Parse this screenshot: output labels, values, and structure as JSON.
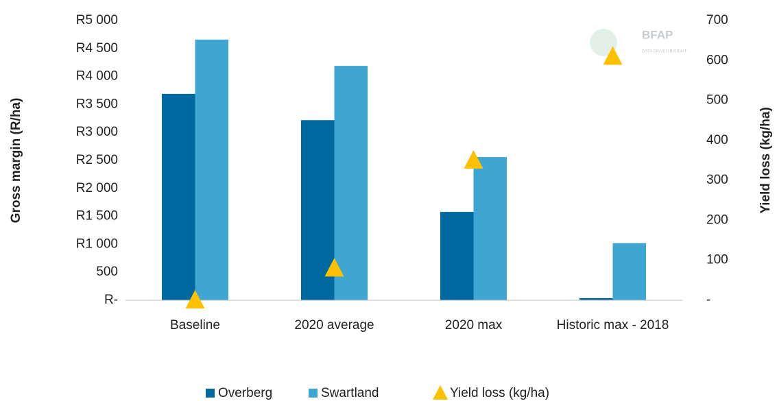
{
  "chart_data": {
    "type": "bar",
    "logo": {
      "name": "BFAP",
      "tagline": "DATA DRIVEN INSIGHT"
    },
    "y_label": "Gross margin (R/ha)",
    "y2_label": "Yield loss (kg/ha)",
    "categories": [
      "Baseline",
      "2020 average",
      "2020 max",
      "Historic max - 2018"
    ],
    "series": [
      {
        "name": "Overberg",
        "color": "#0069a0",
        "values": [
          3690,
          3220,
          1580,
          37
        ]
      },
      {
        "name": "Swartland",
        "color": "#3fa6d1",
        "values": [
          4660,
          4190,
          2560,
          1020
        ]
      },
      {
        "name": "Yield loss (kg/ha)",
        "color": "#ffc000",
        "type": "scatter",
        "marker": "triangle",
        "axis": "y2",
        "values": [
          0,
          80,
          350,
          610
        ]
      }
    ],
    "ylim": [
      0,
      5000
    ],
    "yticks": [
      {
        "value": 0,
        "label": "R-"
      },
      500,
      {
        "value": 1000,
        "label": "R1 000"
      },
      {
        "value": 1500,
        "label": "R1 500"
      },
      {
        "value": 2000,
        "label": "R2 000"
      },
      {
        "value": 2500,
        "label": "R2 500"
      },
      {
        "value": 3000,
        "label": "R3 000"
      },
      {
        "value": 3500,
        "label": "R3 500"
      },
      {
        "value": 4000,
        "label": "R4 000"
      },
      {
        "value": 4500,
        "label": "R4 500"
      },
      {
        "value": 5000,
        "label": "R5 000"
      }
    ],
    "y2lim": [
      0,
      700
    ],
    "y2ticks": [
      {
        "value": 0,
        "label": "-"
      },
      100,
      200,
      300,
      400,
      500,
      600,
      700
    ],
    "grid": false,
    "legend": "bottom"
  }
}
